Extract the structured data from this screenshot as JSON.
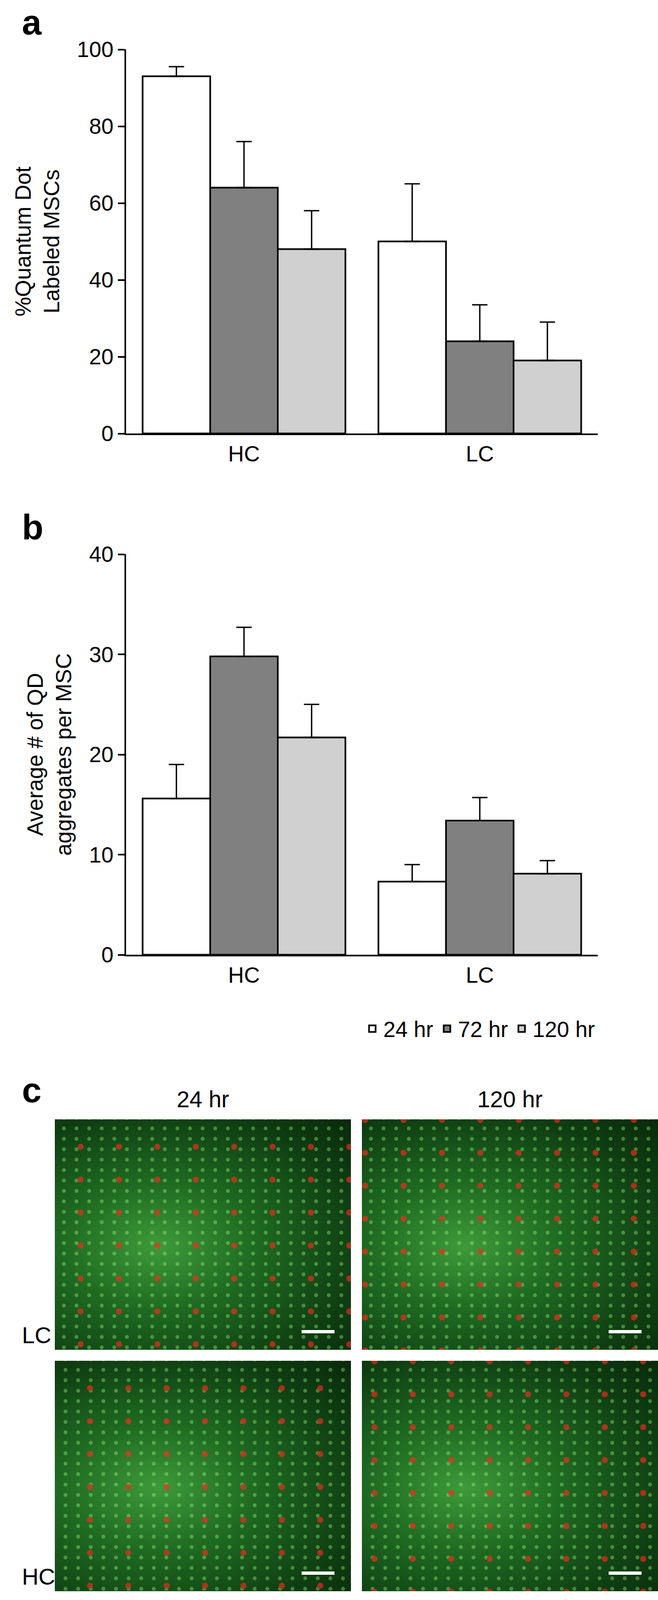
{
  "chart_data": [
    {
      "type": "bar",
      "panel": "a",
      "y_label": [
        "%Quantum Dot",
        "Labeled MSCs"
      ],
      "categories": [
        "HC",
        "LC"
      ],
      "series": [
        {
          "name": "24 hr",
          "color": "#ffffff",
          "values": [
            93,
            50
          ],
          "error": [
            2.5,
            15
          ]
        },
        {
          "name": "72 hr",
          "color": "#808080",
          "values": [
            64,
            24
          ],
          "error": [
            12,
            9.5
          ]
        },
        {
          "name": "120 hr",
          "color": "#d0d0d0",
          "values": [
            48,
            19
          ],
          "error": [
            10,
            10
          ]
        }
      ],
      "ylim": [
        0,
        100
      ],
      "yticks": [
        0,
        20,
        40,
        60,
        80,
        100
      ],
      "grid": false
    },
    {
      "type": "bar",
      "panel": "b",
      "y_label": [
        "Average # of QD",
        "aggregates per MSC"
      ],
      "categories": [
        "HC",
        "LC"
      ],
      "series": [
        {
          "name": "24 hr",
          "color": "#ffffff",
          "values": [
            15.6,
            7.3
          ],
          "error": [
            3.4,
            1.7
          ]
        },
        {
          "name": "72 hr",
          "color": "#808080",
          "values": [
            29.8,
            13.4
          ],
          "error": [
            2.9,
            2.3
          ]
        },
        {
          "name": "120 hr",
          "color": "#d0d0d0",
          "values": [
            21.7,
            8.1
          ],
          "error": [
            3.3,
            1.3
          ]
        }
      ],
      "ylim": [
        0,
        40
      ],
      "yticks": [
        0,
        10,
        20,
        30,
        40
      ],
      "grid": false,
      "legend": "bottom"
    }
  ],
  "panel_c": {
    "label": "c",
    "columns": [
      "24 hr",
      "120 hr"
    ],
    "rows": [
      "LC",
      "HC"
    ]
  }
}
